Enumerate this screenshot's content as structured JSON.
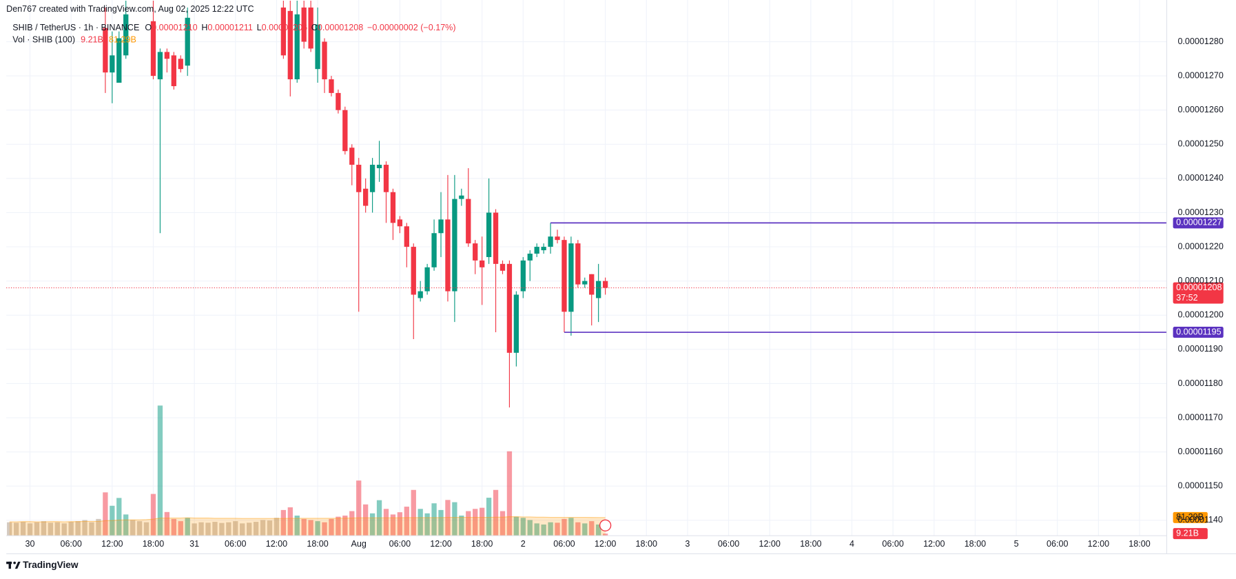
{
  "header": {
    "credit": "Den767 created with TradingView.com, Aug 02, 2025 12:22 UTC",
    "symbol": "SHIB / TetherUS · 1h · BINANCE",
    "ohlc": [
      {
        "k": "O",
        "v": "0.00001210"
      },
      {
        "k": "H",
        "v": "0.00001211"
      },
      {
        "k": "L",
        "v": "0.00001206"
      },
      {
        "k": "C",
        "v": "0.00001208"
      }
    ],
    "change": "−0.00000002 (−0.17%)",
    "vol_title": "Vol · SHIB (100)",
    "vol_value": "9.21B",
    "vol_ma": "81.29B"
  },
  "chart_data": {
    "type": "candlestick",
    "categories": [
      null,
      null,
      null,
      "30",
      null,
      null,
      null,
      null,
      null,
      "06:00",
      null,
      null,
      null,
      null,
      null,
      "12:00",
      null,
      null,
      null,
      null,
      null,
      "18:00",
      null,
      null,
      null,
      null,
      null,
      "31",
      null,
      null,
      null,
      null,
      null,
      "06:00",
      null,
      null,
      null,
      null,
      null,
      "12:00",
      null,
      null,
      null,
      null,
      null,
      "18:00",
      null,
      null,
      null,
      null,
      null,
      "Aug",
      null,
      null,
      null,
      null,
      null,
      "06:00",
      null,
      null,
      null,
      null,
      null,
      "12:00",
      null,
      null,
      null,
      null,
      null,
      "18:00",
      null,
      null,
      null,
      null,
      null,
      "2",
      null,
      null,
      null,
      null,
      null,
      "06:00",
      null,
      null,
      null,
      null,
      null,
      "12:00"
    ],
    "future_categories": [
      "18:00",
      "3",
      "06:00",
      "12:00",
      "18:00",
      "4",
      "06:00",
      "12:00",
      "18:00",
      "5",
      "06:00",
      "12:00",
      "18:00"
    ],
    "open": [
      null,
      null,
      null,
      null,
      null,
      null,
      null,
      null,
      null,
      null,
      null,
      null,
      null,
      null,
      1.284e-05,
      1.271e-05,
      1.268e-05,
      1.276e-05,
      null,
      null,
      null,
      1.286e-05,
      1.269e-05,
      1.277e-05,
      1.276e-05,
      1.275e-05,
      1.273e-05,
      null,
      null,
      null,
      null,
      null,
      null,
      null,
      null,
      null,
      null,
      null,
      null,
      null,
      1.29e-05,
      1.289e-05,
      1.269e-05,
      1.29e-05,
      1.29e-05,
      1.272e-05,
      1.28e-05,
      1.269e-05,
      1.265e-05,
      1.26e-05,
      1.249e-05,
      1.244e-05,
      1.237e-05,
      1.236e-05,
      1.243e-05,
      1.244e-05,
      1.236e-05,
      1.228e-05,
      1.226e-05,
      1.22e-05,
      1.205e-05,
      1.207e-05,
      1.214e-05,
      1.224e-05,
      1.228e-05,
      1.207e-05,
      1.234e-05,
      1.234e-05,
      1.221e-05,
      1.216e-05,
      1.217e-05,
      1.23e-05,
      1.215e-05,
      1.215e-05,
      1.189e-05,
      1.207e-05,
      1.216e-05,
      1.218e-05,
      1.219e-05,
      1.22e-05,
      1.223e-05,
      1.222e-05,
      1.201e-05,
      1.221e-05,
      1.209e-05,
      1.212e-05,
      1.205e-05,
      1.21e-05
    ],
    "high": [
      null,
      null,
      null,
      null,
      null,
      null,
      null,
      null,
      null,
      null,
      null,
      null,
      null,
      null,
      1.29e-05,
      1.283e-05,
      1.283e-05,
      1.292e-05,
      null,
      null,
      null,
      1.292e-05,
      1.278e-05,
      1.278e-05,
      1.277e-05,
      1.276e-05,
      1.29e-05,
      null,
      null,
      null,
      null,
      null,
      null,
      null,
      null,
      null,
      null,
      null,
      null,
      null,
      1.292e-05,
      1.292e-05,
      1.292e-05,
      1.292e-05,
      1.292e-05,
      1.29e-05,
      1.281e-05,
      1.27e-05,
      1.266e-05,
      1.261e-05,
      1.25e-05,
      1.246e-05,
      1.24e-05,
      1.246e-05,
      1.251e-05,
      1.245e-05,
      1.237e-05,
      1.229e-05,
      1.227e-05,
      1.221e-05,
      1.21e-05,
      1.215e-05,
      1.228e-05,
      1.236e-05,
      1.241e-05,
      1.241e-05,
      1.237e-05,
      1.243e-05,
      1.222e-05,
      1.223e-05,
      1.24e-05,
      1.231e-05,
      1.216e-05,
      1.216e-05,
      1.207e-05,
      1.217e-05,
      1.219e-05,
      1.221e-05,
      1.221e-05,
      1.227e-05,
      1.225e-05,
      1.223e-05,
      1.223e-05,
      1.222e-05,
      1.211e-05,
      1.212e-05,
      1.215e-05,
      1.211e-05
    ],
    "low": [
      null,
      null,
      null,
      null,
      null,
      null,
      null,
      null,
      null,
      null,
      null,
      null,
      null,
      null,
      1.265e-05,
      1.262e-05,
      1.268e-05,
      1.275e-05,
      null,
      null,
      null,
      1.269e-05,
      1.224e-05,
      1.271e-05,
      1.266e-05,
      1.271e-05,
      1.27e-05,
      null,
      null,
      null,
      null,
      null,
      null,
      null,
      null,
      null,
      null,
      null,
      null,
      null,
      1.275e-05,
      1.264e-05,
      1.268e-05,
      1.278e-05,
      1.277e-05,
      1.268e-05,
      1.265e-05,
      1.264e-05,
      1.259e-05,
      1.247e-05,
      1.238e-05,
      1.201e-05,
      1.23e-05,
      1.23e-05,
      1.239e-05,
      1.227e-05,
      1.222e-05,
      1.224e-05,
      1.214e-05,
      1.193e-05,
      1.204e-05,
      1.206e-05,
      1.213e-05,
      1.217e-05,
      1.204e-05,
      1.198e-05,
      1.232e-05,
      1.22e-05,
      1.212e-05,
      1.203e-05,
      1.215e-05,
      1.195e-05,
      1.212e-05,
      1.173e-05,
      1.185e-05,
      1.205e-05,
      1.21e-05,
      1.217e-05,
      1.218e-05,
      1.218e-05,
      1.221e-05,
      1.195e-05,
      1.194e-05,
      1.208e-05,
      1.208e-05,
      1.197e-05,
      1.198e-05,
      1.206e-05
    ],
    "close": [
      null,
      null,
      null,
      null,
      null,
      null,
      null,
      null,
      null,
      null,
      null,
      null,
      null,
      null,
      1.271e-05,
      1.276e-05,
      1.281e-05,
      1.288e-05,
      null,
      null,
      null,
      1.27e-05,
      1.277e-05,
      1.275e-05,
      1.267e-05,
      1.272e-05,
      1.287e-05,
      null,
      null,
      null,
      null,
      null,
      null,
      null,
      null,
      null,
      null,
      null,
      null,
      null,
      1.276e-05,
      1.269e-05,
      1.288e-05,
      1.28e-05,
      1.278e-05,
      1.285e-05,
      1.269e-05,
      1.265e-05,
      1.26e-05,
      1.248e-05,
      1.244e-05,
      1.236e-05,
      1.232e-05,
      1.244e-05,
      1.244e-05,
      1.236e-05,
      1.227e-05,
      1.226e-05,
      1.22e-05,
      1.206e-05,
      1.207e-05,
      1.214e-05,
      1.224e-05,
      1.228e-05,
      1.207e-05,
      1.234e-05,
      1.235e-05,
      1.221e-05,
      1.216e-05,
      1.214e-05,
      1.23e-05,
      1.215e-05,
      1.213e-05,
      1.189e-05,
      1.206e-05,
      1.216e-05,
      1.218e-05,
      1.22e-05,
      1.22e-05,
      1.223e-05,
      1.222e-05,
      1.201e-05,
      1.221e-05,
      1.209e-05,
      1.21e-05,
      1.206e-05,
      1.21e-05,
      1.208e-05
    ],
    "up_color": "#089981",
    "down_color": "#f23645",
    "ylim": [
      1.1355e-05,
      1.2922e-05
    ],
    "yticks": [
      {
        "value": 1.14e-05,
        "label": "0.00001140"
      },
      {
        "value": 1.15e-05,
        "label": "0.00001150"
      },
      {
        "value": 1.16e-05,
        "label": "0.00001160"
      },
      {
        "value": 1.17e-05,
        "label": "0.00001170"
      },
      {
        "value": 1.18e-05,
        "label": "0.00001180"
      },
      {
        "value": 1.19e-05,
        "label": "0.00001190"
      },
      {
        "value": 1.2e-05,
        "label": "0.00001200"
      },
      {
        "value": 1.21e-05,
        "label": "0.00001210"
      },
      {
        "value": 1.22e-05,
        "label": "0.00001220"
      },
      {
        "value": 1.23e-05,
        "label": "0.00001230"
      },
      {
        "value": 1.24e-05,
        "label": "0.00001240"
      },
      {
        "value": 1.25e-05,
        "label": "0.00001250"
      },
      {
        "value": 1.26e-05,
        "label": "0.00001260"
      },
      {
        "value": 1.27e-05,
        "label": "0.00001270"
      },
      {
        "value": 1.28e-05,
        "label": "0.00001280"
      }
    ],
    "grid": true,
    "last_price": 1.208e-05,
    "countdown": "37:52",
    "levels": [
      {
        "value": 1.227e-05,
        "color": "#5b32c0"
      },
      {
        "value": 1.195e-05,
        "color": "#5b32c0"
      }
    ],
    "volume": {
      "values": [
        60,
        58,
        62,
        55,
        60,
        65,
        58,
        60,
        55,
        62,
        65,
        70,
        60,
        75,
        194,
        134,
        169,
        95,
        70,
        65,
        60,
        187,
        583,
        106,
        75,
        65,
        80,
        55,
        60,
        58,
        62,
        57,
        60,
        65,
        55,
        58,
        62,
        70,
        68,
        80,
        115,
        127,
        90,
        75,
        70,
        65,
        60,
        75,
        85,
        90,
        110,
        247,
        140,
        100,
        159,
        120,
        95,
        105,
        130,
        205,
        120,
        100,
        145,
        115,
        160,
        150,
        90,
        110,
        120,
        125,
        170,
        205,
        110,
        378,
        85,
        80,
        70,
        55,
        50,
        60,
        58,
        75,
        80,
        60,
        55,
        65,
        50,
        9.21
      ],
      "ma": [
        62,
        62,
        63,
        63,
        62,
        62,
        63,
        63,
        62,
        63,
        63,
        64,
        64,
        64,
        67,
        68,
        70,
        71,
        71,
        71,
        72,
        74,
        79,
        79,
        79,
        79,
        80,
        79,
        79,
        79,
        78,
        78,
        78,
        78,
        77,
        77,
        77,
        77,
        77,
        77,
        77,
        78,
        78,
        78,
        78,
        78,
        78,
        78,
        78,
        79,
        79,
        80,
        80,
        80,
        80,
        80,
        80,
        80,
        81,
        81,
        81,
        81,
        81,
        81,
        82,
        82,
        82,
        82,
        82,
        82,
        82,
        83,
        83,
        85,
        85,
        84,
        84,
        83,
        83,
        82,
        82,
        82,
        82,
        82,
        82,
        81.5,
        81.4,
        81.29
      ],
      "ylim": [
        0,
        2400
      ],
      "last_label": "9.21B",
      "ma_label": "81.29B",
      "ma_color": "#ff9800"
    }
  },
  "footer": {
    "brand": "TradingView"
  }
}
